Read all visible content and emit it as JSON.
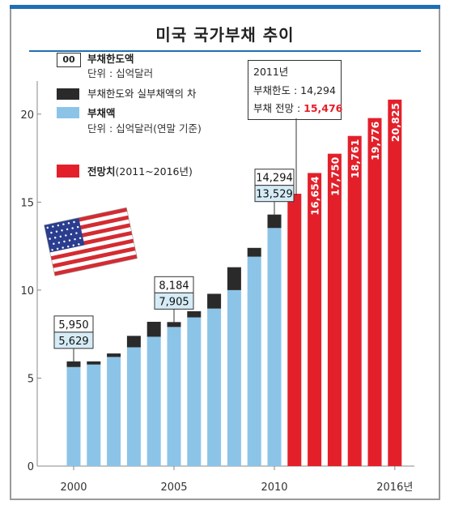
{
  "title": "미국 국가부채 추이",
  "legend": {
    "box_label": "00",
    "limit_label": "부채한도액",
    "limit_unit": "단위 : 십억달러",
    "gap_label": "부채한도와 실부채액의 차",
    "debt_label": "부채액",
    "debt_unit": "단위 : 십억달러(연말 기준)",
    "forecast_label_bold": "전망치",
    "forecast_label_rest": "(2011~2016년)"
  },
  "callout_2011": {
    "year": "2011년",
    "limit_text": "부채한도 : 14,294",
    "forecast_prefix": "부채 전망 : ",
    "forecast_value": "15,476"
  },
  "colors": {
    "debt": "#8cc4e8",
    "gap": "#2a2a2a",
    "forecast": "#e3202a",
    "accent": "#1f6fb5",
    "label_box": "#d5ecf7"
  },
  "chart_data": {
    "type": "bar",
    "stacked": true,
    "x": [
      2000,
      2001,
      2002,
      2003,
      2004,
      2005,
      2006,
      2007,
      2008,
      2009,
      2010,
      2011,
      2012,
      2013,
      2014,
      2015,
      2016
    ],
    "xtick_labels": [
      "2000",
      "2005",
      "2010",
      "2016년"
    ],
    "xtick_values": [
      2000,
      2005,
      2010,
      2016
    ],
    "ylim": [
      0,
      21
    ],
    "yticks": [
      0,
      5,
      10,
      15,
      20
    ],
    "series": [
      {
        "name": "부채액",
        "values": [
          5.629,
          5.77,
          6.2,
          6.75,
          7.35,
          7.905,
          8.45,
          8.95,
          10.0,
          11.9,
          13.529,
          null,
          null,
          null,
          null,
          null,
          null
        ]
      },
      {
        "name": "부채한도와 실부채액의 차",
        "values": [
          0.321,
          0.18,
          0.2,
          0.65,
          0.85,
          0.279,
          0.35,
          0.84,
          1.3,
          0.5,
          0.765,
          null,
          null,
          null,
          null,
          null,
          null
        ]
      },
      {
        "name": "전망치",
        "values": [
          null,
          null,
          null,
          null,
          null,
          null,
          null,
          null,
          null,
          null,
          null,
          15.476,
          16.654,
          17.75,
          18.761,
          19.776,
          20.825
        ]
      }
    ],
    "point_labels": [
      {
        "x": 2000,
        "limit": "5,950",
        "debt": "5,629"
      },
      {
        "x": 2005,
        "limit": "8,184",
        "debt": "7,905"
      },
      {
        "x": 2010,
        "limit": "14,294",
        "debt": "13,529"
      }
    ],
    "forecast_labels": [
      "16,654",
      "17,750",
      "18,761",
      "19,776",
      "20,825"
    ]
  }
}
